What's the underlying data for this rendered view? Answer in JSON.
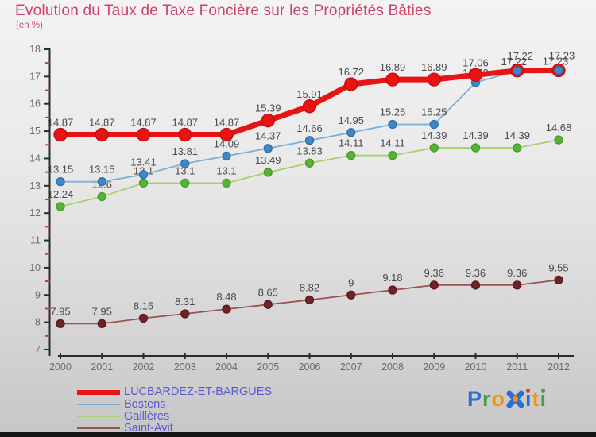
{
  "title": "Evolution du Taux de Taxe Foncière sur les Propriétés Bâties",
  "subtitle": "(en %)",
  "title_color": "#cc4465",
  "legend_text_color": "#5a5ad0",
  "chart_data": {
    "type": "line",
    "title": "Evolution du Taux de Taxe Foncière sur les Propriétés Bâties",
    "subtitle": "(en %)",
    "x": [
      2000,
      2001,
      2002,
      2003,
      2004,
      2005,
      2006,
      2007,
      2008,
      2009,
      2010,
      2011,
      2012
    ],
    "ylim": [
      7,
      18
    ],
    "y_major_step": 1,
    "y_minor_step": 0.5,
    "grid": false,
    "legend_position": "bottom-left",
    "series": [
      {
        "name": "LUCBARDEZ-ET-BARGUES",
        "line_color": "#e81414",
        "line_width": 7,
        "marker_radius": 8,
        "marker_fill": "#e81414",
        "marker_stroke": "#bf0d0d",
        "values": [
          14.87,
          14.87,
          14.87,
          14.87,
          14.87,
          15.39,
          15.91,
          16.72,
          16.89,
          16.89,
          17.06,
          17.22,
          17.23
        ],
        "label_offsets": {
          "11": [
            4,
            -3
          ],
          "12": [
            4,
            -3
          ]
        }
      },
      {
        "name": "Bostens",
        "line_color": "#7bafd6",
        "line_width": 1.8,
        "marker_radius": 5,
        "marker_fill": "#3f87c7",
        "marker_stroke": "#2e6ea6",
        "values": [
          13.15,
          13.15,
          13.41,
          13.81,
          14.09,
          14.37,
          14.66,
          14.95,
          15.25,
          15.25,
          16.78,
          17.22,
          17.23
        ],
        "label_offsets": {
          "10": [
            0,
            3
          ],
          "11": [
            -4,
            4
          ],
          "12": [
            -4,
            4
          ]
        },
        "overlay_marker_indices": [
          11,
          12
        ]
      },
      {
        "name": "Gaillères",
        "line_color": "#a6d26c",
        "line_width": 1.8,
        "marker_radius": 5,
        "marker_fill": "#55b433",
        "marker_stroke": "#479a2a",
        "values": [
          12.24,
          12.6,
          13.1,
          13.1,
          13.1,
          13.49,
          13.83,
          14.11,
          14.11,
          14.39,
          14.39,
          14.39,
          14.68
        ]
      },
      {
        "name": "Saint-Avit",
        "line_color": "#9b5252",
        "line_width": 1.8,
        "marker_radius": 5,
        "marker_fill": "#6e2424",
        "marker_stroke": "#5a1c1c",
        "values": [
          7.95,
          7.95,
          8.15,
          8.31,
          8.48,
          8.65,
          8.82,
          9,
          9.18,
          9.36,
          9.36,
          9.36,
          9.55
        ]
      }
    ],
    "axis_color": "#2a2a2a",
    "minor_tick_color": "#cc3b33",
    "tick_label_color": "#6b6b6b",
    "data_label_color": "#4a4a4a"
  },
  "logo": {
    "text": "Proxiti",
    "letters": [
      {
        "ch": "P",
        "color": "#2b6fd4"
      },
      {
        "ch": "r",
        "color": "#3fa34d"
      },
      {
        "ch": "o",
        "color": "#f5940c"
      },
      {
        "ch": "x",
        "color": "#2b6fd4",
        "style": "x-mark",
        "accent": "#f5940c"
      },
      {
        "ch": "i",
        "color": "#2b6fd4",
        "dot": "#e03b2f"
      },
      {
        "ch": "t",
        "color": "#f5940c"
      },
      {
        "ch": "i",
        "color": "#3fa34d",
        "dot": "#3fa34d"
      }
    ]
  }
}
